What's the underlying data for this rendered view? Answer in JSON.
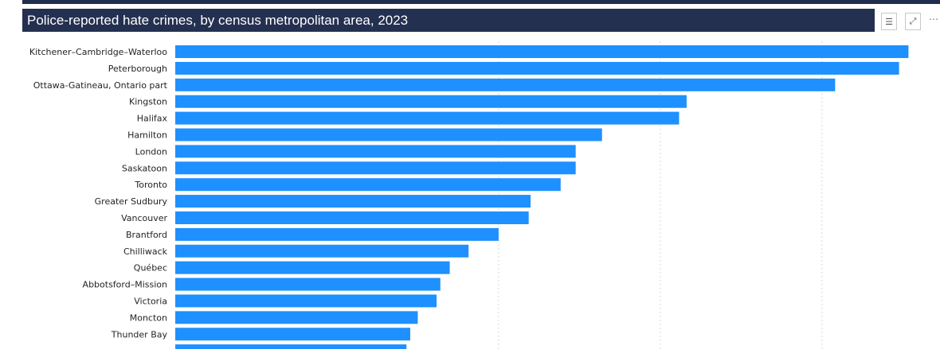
{
  "header": {
    "title": "Police-reported hate crimes, by census metropolitan area, 2023",
    "filter_icon": "filter-icon",
    "focus_icon": "focus-mode-icon",
    "more_icon": "more-options-icon"
  },
  "colors": {
    "bar": "#1e90ff",
    "title_bg": "#243050",
    "gridline": "#d9d9d9"
  },
  "chart_data": {
    "type": "bar",
    "orientation": "horizontal",
    "title": "Police-reported hate crimes, by census metropolitan area, 2023",
    "xlabel": "",
    "ylabel": "",
    "grid": true,
    "gridline_values": [
      17.2,
      25.8,
      34.4
    ],
    "xlim": [
      0,
      40
    ],
    "categories": [
      "Kitchener–Cambridge–Waterloo",
      "Peterborough",
      "Ottawa-Gatineau, Ontario part",
      "Kingston",
      "Halifax",
      "Hamilton",
      "London",
      "Saskatoon",
      "Toronto",
      "Greater Sudbury",
      "Vancouver",
      "Brantford",
      "Chilliwack",
      "Québec",
      "Abbotsford–Mission",
      "Victoria",
      "Moncton",
      "Thunder Bay",
      ""
    ],
    "values": [
      39.0,
      38.5,
      35.1,
      27.2,
      26.8,
      22.7,
      21.3,
      21.3,
      20.5,
      18.9,
      18.8,
      17.2,
      15.6,
      14.6,
      14.1,
      13.9,
      12.9,
      12.5,
      12.3
    ]
  }
}
